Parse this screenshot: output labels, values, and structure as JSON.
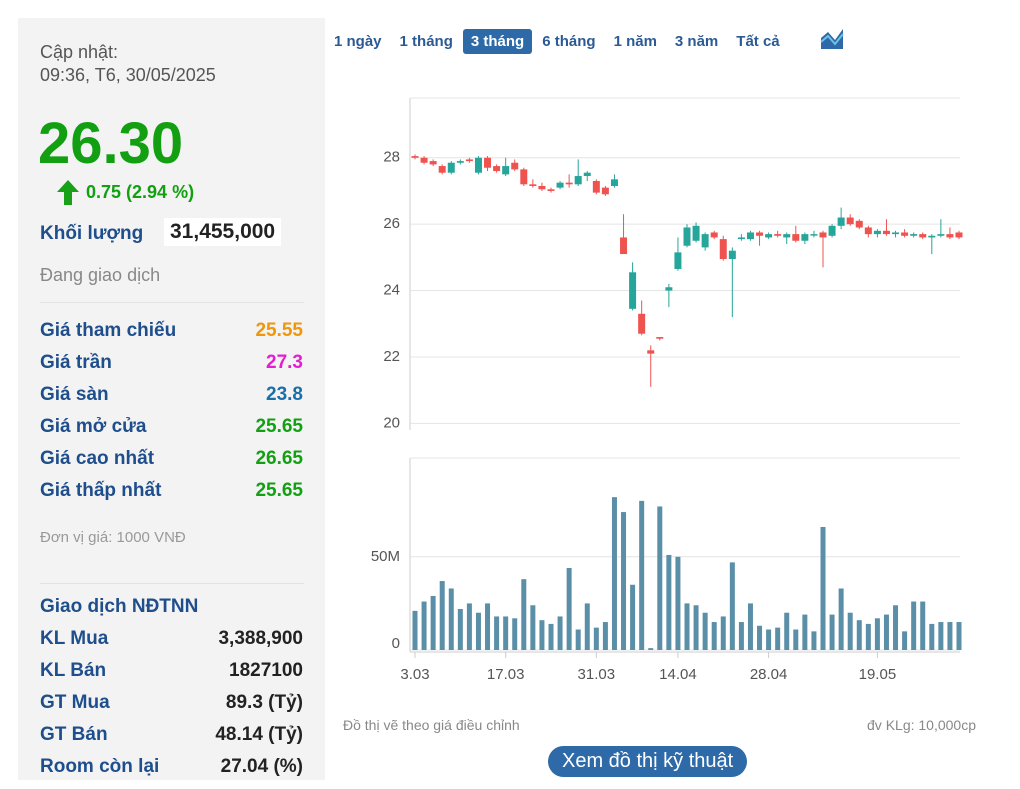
{
  "panel": {
    "update_label": "Cập nhật:",
    "update_time": "09:36, T6, 30/05/2025",
    "price": "26.30",
    "change": "0.75 (2.94 %)",
    "volume_label": "Khối lượng",
    "volume": "31,455,000",
    "status": "Đang giao dịch",
    "prices": [
      {
        "label": "Giá tham chiếu",
        "value": "25.55",
        "color": "#f0960a"
      },
      {
        "label": "Giá trần",
        "value": "27.3",
        "color": "#e020d0"
      },
      {
        "label": "Giá sàn",
        "value": "23.8",
        "color": "#1a6fa8"
      },
      {
        "label": "Giá mở cửa",
        "value": "25.65",
        "color": "#12a012"
      },
      {
        "label": "Giá cao nhất",
        "value": "26.65",
        "color": "#12a012"
      },
      {
        "label": "Giá thấp nhất",
        "value": "25.65",
        "color": "#12a012"
      }
    ],
    "unit_note": "Đơn vị giá: 1000 VNĐ",
    "foreign_title": "Giao dịch NĐTNN",
    "foreign": [
      {
        "label": "KL Mua",
        "value": "3,388,900"
      },
      {
        "label": "KL Bán",
        "value": "1827100"
      },
      {
        "label": "GT Mua",
        "value": "89.3 (Tỷ)"
      },
      {
        "label": "GT Bán",
        "value": "48.14 (Tỷ)"
      },
      {
        "label": "Room còn lại",
        "value": "27.04 (%)"
      }
    ]
  },
  "tabs": [
    "1 ngày",
    "1 tháng",
    "3 tháng",
    "6 tháng",
    "1 năm",
    "3 năm",
    "Tất cả"
  ],
  "active_tab": 2,
  "notes": {
    "left": "Đồ thị vẽ theo giá điều chỉnh",
    "right": "đv KLg: 10,000cp"
  },
  "button": "Xem đồ thị kỹ thuật",
  "chart_data": [
    {
      "type": "candlestick",
      "up_color": "#26a69a",
      "down_color": "#ef5350",
      "grid": true,
      "ylim": [
        19.8,
        29.8
      ],
      "yticks": [
        20,
        22,
        24,
        26,
        28
      ],
      "open": [
        28.05,
        28.0,
        27.9,
        27.75,
        27.55,
        27.85,
        27.95,
        27.55,
        28.0,
        27.75,
        27.5,
        27.85,
        27.65,
        27.2,
        27.15,
        27.05,
        27.1,
        27.25,
        27.2,
        27.45,
        27.3,
        27.1,
        27.15,
        25.6,
        23.45,
        23.3,
        22.2,
        22.6,
        24.0,
        24.65,
        25.35,
        25.5,
        25.3,
        25.75,
        25.55,
        24.95,
        25.55,
        25.55,
        25.75,
        25.6,
        25.7,
        25.6,
        25.7,
        25.5,
        25.7,
        25.75,
        25.65,
        25.95,
        26.2,
        26.1,
        25.9,
        25.7,
        25.8,
        25.7,
        25.75,
        25.65,
        25.7,
        25.6,
        25.65,
        25.7,
        25.75
      ],
      "high": [
        28.1,
        28.05,
        27.95,
        27.8,
        27.9,
        27.95,
        28.0,
        28.05,
        28.05,
        27.8,
        28.0,
        27.95,
        27.7,
        27.35,
        27.25,
        27.1,
        27.3,
        27.5,
        27.95,
        27.6,
        27.35,
        27.15,
        27.5,
        26.3,
        24.85,
        23.7,
        22.35,
        22.6,
        24.2,
        25.6,
        26.0,
        26.05,
        25.75,
        25.8,
        25.65,
        25.3,
        25.7,
        25.8,
        25.8,
        25.75,
        25.8,
        25.75,
        25.95,
        25.75,
        25.8,
        25.8,
        26.0,
        26.5,
        26.3,
        26.15,
        25.95,
        25.85,
        26.15,
        25.8,
        25.85,
        25.75,
        25.75,
        25.7,
        26.15,
        25.9,
        25.8
      ],
      "low": [
        27.95,
        27.8,
        27.75,
        27.5,
        27.5,
        27.8,
        27.85,
        27.5,
        27.6,
        27.55,
        27.45,
        27.6,
        27.15,
        27.1,
        27.0,
        26.95,
        27.05,
        27.1,
        27.15,
        27.3,
        26.9,
        26.85,
        27.1,
        25.1,
        23.4,
        22.65,
        21.1,
        22.5,
        23.5,
        24.6,
        25.3,
        25.45,
        25.2,
        25.55,
        24.9,
        23.2,
        25.5,
        25.5,
        25.35,
        25.55,
        25.6,
        25.4,
        25.45,
        25.4,
        25.6,
        24.7,
        25.6,
        25.85,
        25.95,
        25.85,
        25.6,
        25.6,
        25.65,
        25.6,
        25.6,
        25.6,
        25.55,
        25.1,
        25.6,
        25.55,
        25.55
      ],
      "close": [
        28.0,
        27.85,
        27.8,
        27.55,
        27.85,
        27.9,
        27.9,
        28.0,
        27.7,
        27.6,
        27.75,
        27.65,
        27.2,
        27.15,
        27.05,
        27.0,
        27.25,
        27.2,
        27.45,
        27.55,
        26.95,
        26.9,
        27.35,
        25.1,
        24.55,
        22.7,
        22.1,
        22.55,
        24.1,
        25.15,
        25.9,
        25.95,
        25.7,
        25.6,
        24.95,
        25.2,
        25.6,
        25.75,
        25.65,
        25.7,
        25.65,
        25.7,
        25.5,
        25.7,
        25.7,
        25.6,
        25.95,
        26.2,
        26.0,
        25.9,
        25.7,
        25.8,
        25.7,
        25.75,
        25.65,
        25.7,
        25.6,
        25.65,
        25.7,
        25.6,
        25.6
      ]
    },
    {
      "type": "bar",
      "color": "#5b8fa8",
      "grid": true,
      "categories": [
        "3.03",
        null,
        null,
        null,
        null,
        null,
        null,
        null,
        null,
        null,
        "17.03",
        null,
        null,
        null,
        null,
        null,
        null,
        null,
        null,
        null,
        "31.03",
        null,
        null,
        null,
        null,
        null,
        null,
        null,
        null,
        "14.04",
        null,
        null,
        null,
        null,
        null,
        null,
        null,
        null,
        null,
        "28.04",
        null,
        null,
        null,
        null,
        null,
        null,
        null,
        null,
        null,
        null,
        null,
        "19.05",
        null,
        null,
        null,
        null,
        null,
        null,
        null,
        null,
        null
      ],
      "ylim": [
        0,
        103
      ],
      "yticks": [
        0,
        {
          "value": 50,
          "label": "50M"
        }
      ],
      "values": [
        21,
        26,
        29,
        37,
        33,
        22,
        25,
        20,
        25,
        18,
        18,
        17,
        38,
        24,
        16,
        14,
        18,
        44,
        11,
        25,
        12,
        15,
        82,
        74,
        35,
        80,
        1,
        77,
        51,
        50,
        25,
        24,
        20,
        15,
        18,
        47,
        15,
        25,
        13,
        11,
        12,
        20,
        11,
        19,
        10,
        66,
        19,
        33,
        20,
        16,
        14,
        17,
        19,
        24,
        10,
        26,
        26,
        14,
        15,
        15,
        15
      ]
    }
  ]
}
